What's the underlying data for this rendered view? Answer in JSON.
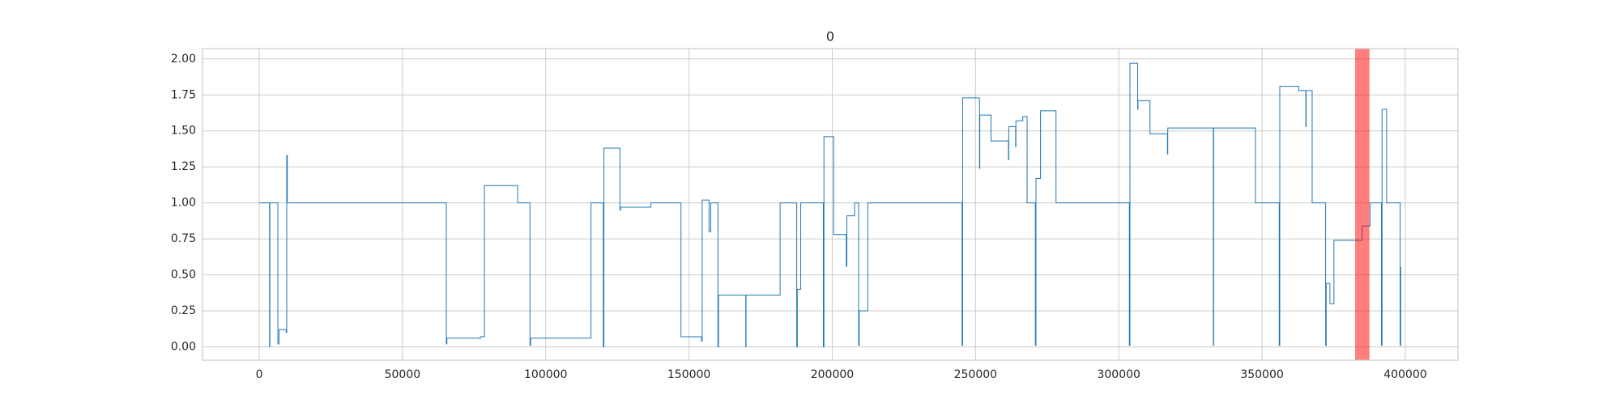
{
  "chart_data": {
    "type": "line",
    "title": "0",
    "xlim": [
      -19800,
      418400
    ],
    "ylim": [
      -0.093,
      2.072
    ],
    "xticks": [
      0,
      50000,
      100000,
      150000,
      200000,
      250000,
      300000,
      350000,
      400000
    ],
    "yticks": [
      {
        "value": 0,
        "label": "0.00"
      },
      {
        "value": 0.25,
        "label": "0.25"
      },
      {
        "value": 0.5,
        "label": "0.50"
      },
      {
        "value": 0.75,
        "label": "0.75"
      },
      {
        "value": 1,
        "label": "1.00"
      },
      {
        "value": 1.25,
        "label": "1.25"
      },
      {
        "value": 1.5,
        "label": "1.50"
      },
      {
        "value": 1.75,
        "label": "1.75"
      },
      {
        "value": 2,
        "label": "2.00"
      }
    ],
    "grid": true,
    "highlight": {
      "x": [
        382500,
        387500
      ],
      "color": "#ff0000"
    },
    "series": [
      {
        "color": "#1f77b4",
        "x": [
          0,
          3600,
          3600,
          3700,
          3700,
          6500,
          6500,
          6900,
          6900,
          9400,
          9400,
          9600,
          9600,
          9800,
          9800,
          65300,
          65300,
          65500,
          65500,
          77200,
          77200,
          78600,
          78600,
          90200,
          90200,
          94500,
          94500,
          94700,
          94700,
          115800,
          115800,
          120100,
          120100,
          120300,
          120300,
          125900,
          125900,
          126100,
          126100,
          136700,
          136700,
          147200,
          147200,
          154400,
          154400,
          154600,
          154600,
          157000,
          157000,
          157600,
          157600,
          160100,
          160100,
          160300,
          160300,
          169800,
          169800,
          169900,
          169900,
          181800,
          181800,
          187600,
          187600,
          187800,
          187800,
          189000,
          189000,
          196900,
          196900,
          197100,
          197100,
          200500,
          200500,
          204900,
          204900,
          205100,
          205100,
          207800,
          207800,
          209200,
          209200,
          209400,
          209400,
          212400,
          212400,
          245300,
          245300,
          245500,
          245500,
          251400,
          251400,
          251500,
          251500,
          255400,
          255400,
          261500,
          261500,
          261600,
          261600,
          264000,
          264000,
          264100,
          264100,
          266500,
          266500,
          268000,
          268000,
          270900,
          270900,
          271100,
          271100,
          272700,
          272700,
          278100,
          278100,
          303700,
          303700,
          303900,
          303900,
          306600,
          306600,
          306700,
          306700,
          310900,
          310900,
          317000,
          317000,
          317100,
          317100,
          333000,
          333000,
          333100,
          333100,
          347700,
          347700,
          356000,
          356000,
          356200,
          356200,
          362800,
          362800,
          365300,
          365300,
          365400,
          365400,
          367500,
          367500,
          372200,
          372200,
          372400,
          372400,
          373700,
          373700,
          375100,
          375100,
          384900,
          384900,
          387700,
          387700,
          391700,
          391700,
          391900,
          391900,
          393500,
          393500,
          398200,
          398200,
          398400,
          398400,
          398600
        ],
        "values": [
          1.0,
          1.0,
          0.0,
          0.0,
          1.0,
          1.0,
          0.02,
          0.02,
          0.12,
          0.12,
          0.1,
          0.1,
          1.33,
          1.33,
          1.0,
          1.0,
          0.02,
          0.02,
          0.06,
          0.06,
          0.07,
          0.07,
          1.12,
          1.12,
          1.0,
          1.0,
          0.01,
          0.01,
          0.06,
          0.06,
          1.0,
          1.0,
          0.0,
          0.0,
          1.38,
          1.38,
          0.95,
          0.95,
          0.97,
          0.97,
          1.0,
          1.0,
          0.07,
          0.07,
          0.04,
          0.04,
          1.02,
          1.02,
          0.8,
          0.8,
          1.0,
          1.0,
          0.0,
          0.0,
          0.36,
          0.36,
          0.0,
          0.0,
          0.36,
          0.36,
          1.0,
          1.0,
          0.0,
          0.0,
          0.4,
          0.4,
          1.0,
          1.0,
          0.0,
          0.0,
          1.46,
          1.46,
          0.78,
          0.78,
          0.56,
          0.56,
          0.91,
          0.91,
          1.0,
          1.0,
          0.01,
          0.01,
          0.25,
          0.25,
          1.0,
          1.0,
          0.01,
          0.01,
          1.73,
          1.73,
          1.24,
          1.24,
          1.61,
          1.61,
          1.43,
          1.43,
          1.3,
          1.3,
          1.53,
          1.53,
          1.39,
          1.39,
          1.57,
          1.57,
          1.6,
          1.6,
          1.0,
          1.0,
          0.01,
          0.01,
          1.17,
          1.17,
          1.64,
          1.64,
          1.0,
          1.0,
          0.01,
          0.01,
          1.97,
          1.97,
          1.65,
          1.65,
          1.71,
          1.71,
          1.48,
          1.48,
          1.34,
          1.34,
          1.52,
          1.52,
          0.01,
          0.01,
          1.52,
          1.52,
          1.0,
          1.0,
          0.01,
          0.01,
          1.81,
          1.81,
          1.78,
          1.78,
          1.53,
          1.53,
          1.78,
          1.78,
          1.0,
          1.0,
          0.01,
          0.01,
          0.44,
          0.44,
          0.3,
          0.3,
          0.74,
          0.74,
          0.84,
          0.84,
          1.0,
          1.0,
          0.01,
          0.01,
          1.65,
          1.65,
          1.0,
          1.0,
          0.01,
          0.01,
          0.55,
          0.55
        ]
      }
    ]
  }
}
